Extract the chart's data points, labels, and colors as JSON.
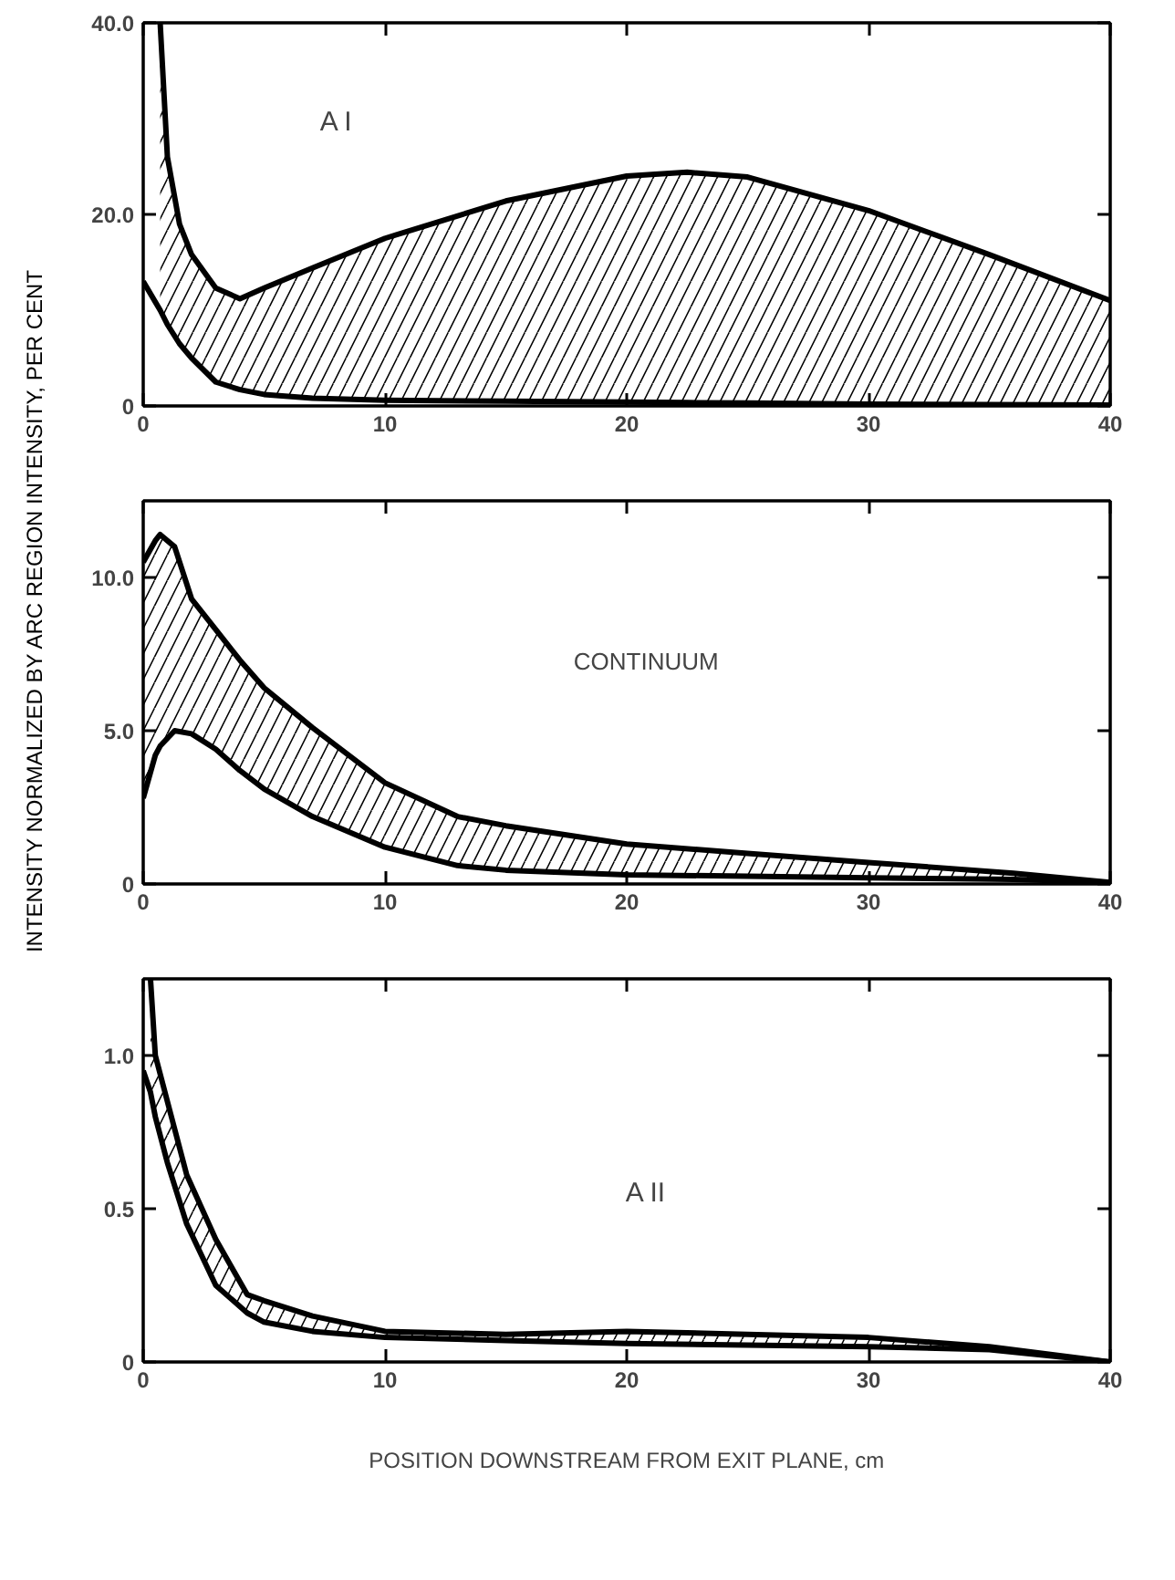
{
  "chart_data": [
    {
      "type": "line",
      "annotations": [
        "A I"
      ],
      "xlim": [
        0,
        40
      ],
      "ylim": [
        0,
        40
      ],
      "xticks": [
        0,
        10,
        20,
        30,
        40
      ],
      "yticks": [
        0,
        {
          "value": 20,
          "label": "20.0"
        },
        {
          "value": 40,
          "label": "40.0"
        }
      ],
      "grid": false,
      "marker": "none",
      "line_style": "solid",
      "x": [
        0,
        0.7,
        1,
        1.5,
        2,
        3,
        4,
        5,
        7,
        10,
        15,
        20,
        22.5,
        25,
        30,
        35,
        40
      ],
      "series": [
        {
          "color": "#000000",
          "values": [
            null,
            40,
            26,
            19,
            15.8,
            12.3,
            11.2,
            12.3,
            14.4,
            17.5,
            21.4,
            24,
            24.4,
            23.9,
            20.4,
            15.8,
            11
          ],
          "lower": [
            null,
            10,
            8.5,
            6.5,
            5,
            2.5,
            1.7,
            1.2,
            0.8,
            0.6,
            0.5,
            0.4,
            0.35,
            0.3,
            0.2,
            0.15,
            0.1
          ],
          "upper": [
            null,
            40,
            26,
            19,
            15.8,
            12.3,
            11.2,
            12.3,
            14.4,
            17.5,
            21.4,
            24,
            24.4,
            23.9,
            20.4,
            15.8,
            11
          ]
        },
        {
          "color": "#000000",
          "values": [
            13,
            10,
            8.5,
            6.5,
            5,
            2.5,
            1.7,
            1.2,
            0.8,
            0.6,
            0.5,
            0.4,
            0.35,
            0.3,
            0.2,
            0.15,
            0.1
          ]
        }
      ]
    },
    {
      "type": "line",
      "annotations": [
        "CONTINUUM"
      ],
      "ylabel": "INTENSITY NORMALIZED BY ARC REGION INTENSITY, PER CENT",
      "xlim": [
        0,
        40
      ],
      "ylim": [
        0,
        12.5
      ],
      "xticks": [
        0,
        10,
        20,
        30,
        40
      ],
      "yticks": [
        0,
        {
          "value": 5,
          "label": "5.0"
        },
        {
          "value": 10,
          "label": "10.0"
        }
      ],
      "grid": false,
      "marker": "none",
      "line_style": "solid",
      "x": [
        0,
        0.5,
        0.7,
        1.3,
        2,
        3,
        4,
        5,
        7,
        10,
        13,
        15,
        20,
        25,
        30,
        36,
        40
      ],
      "series": [
        {
          "color": "#000000",
          "values": [
            10.5,
            11.2,
            11.4,
            11,
            9.3,
            8.3,
            7.3,
            6.4,
            5.1,
            3.3,
            2.2,
            1.9,
            1.3,
            1.0,
            0.7,
            0.35,
            0.05
          ],
          "lower": [
            2.8,
            4.2,
            4.5,
            5.0,
            4.9,
            4.4,
            3.7,
            3.1,
            2.2,
            1.2,
            0.6,
            0.45,
            0.3,
            0.25,
            0.2,
            0.15,
            0.05
          ],
          "upper": [
            10.5,
            11.2,
            11.4,
            11,
            9.3,
            8.3,
            7.3,
            6.4,
            5.1,
            3.3,
            2.2,
            1.9,
            1.3,
            1.0,
            0.7,
            0.35,
            0.05
          ]
        },
        {
          "color": "#000000",
          "values": [
            2.8,
            4.2,
            4.5,
            5.0,
            4.9,
            4.4,
            3.7,
            3.1,
            2.2,
            1.2,
            0.6,
            0.45,
            0.3,
            0.25,
            0.2,
            0.15,
            0.05
          ]
        }
      ]
    },
    {
      "type": "line",
      "annotations": [
        "A II"
      ],
      "xlabel": "POSITION DOWNSTREAM FROM EXIT PLANE, cm",
      "xlim": [
        0,
        40
      ],
      "ylim": [
        0,
        1.25
      ],
      "xticks": [
        0,
        10,
        20,
        30,
        40
      ],
      "yticks": [
        0,
        0.5,
        {
          "value": 1,
          "label": "1.0"
        }
      ],
      "grid": false,
      "marker": "none",
      "line_style": "solid",
      "x": [
        0,
        0.3,
        0.5,
        1,
        1.8,
        3,
        4.3,
        5,
        7,
        10,
        15,
        20,
        25,
        30,
        35,
        40
      ],
      "series": [
        {
          "color": "#000000",
          "values": [
            null,
            1.25,
            1.0,
            0.85,
            0.61,
            0.4,
            0.22,
            0.2,
            0.15,
            0.1,
            0.09,
            0.1,
            0.09,
            0.08,
            0.05,
            0
          ],
          "lower": [
            null,
            0.88,
            0.8,
            0.65,
            0.45,
            0.25,
            0.16,
            0.13,
            0.1,
            0.08,
            0.07,
            0.06,
            0.055,
            0.05,
            0.04,
            0
          ],
          "upper": [
            null,
            1.25,
            1.0,
            0.85,
            0.61,
            0.4,
            0.22,
            0.2,
            0.15,
            0.1,
            0.09,
            0.1,
            0.09,
            0.08,
            0.05,
            0
          ]
        },
        {
          "color": "#000000",
          "values": [
            0.95,
            0.88,
            0.8,
            0.65,
            0.45,
            0.25,
            0.16,
            0.13,
            0.1,
            0.08,
            0.07,
            0.06,
            0.055,
            0.05,
            0.04,
            0
          ]
        }
      ]
    }
  ]
}
